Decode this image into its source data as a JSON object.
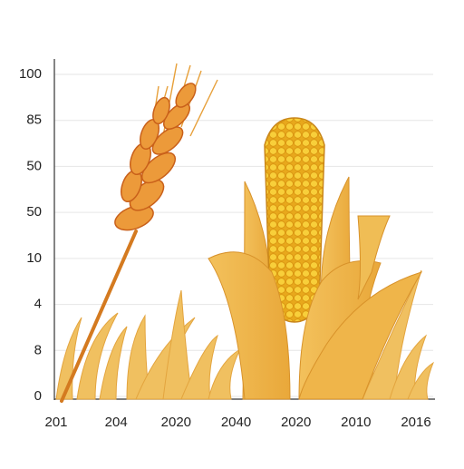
{
  "axis": {
    "y_labels": [
      "100",
      "85",
      "50",
      "50",
      "10",
      "4",
      "8",
      "0"
    ],
    "x_labels": [
      "201",
      "204",
      "2020",
      "2040",
      "2020",
      "2010",
      "2016"
    ]
  }
}
